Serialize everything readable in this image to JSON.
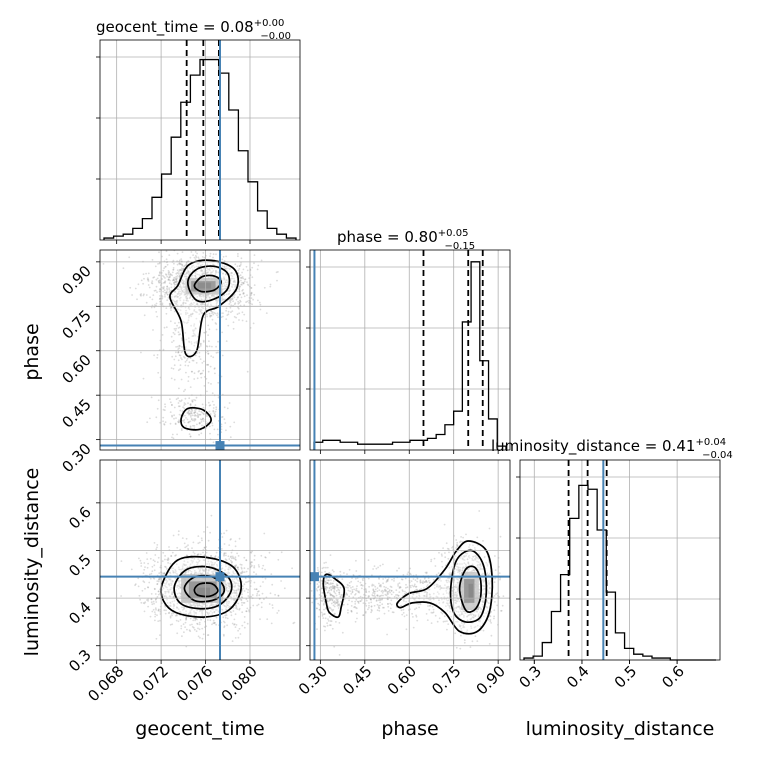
{
  "chart_data": {
    "type": "corner",
    "colors": {
      "truth": "#4682b4",
      "hist": "#000000",
      "samples": "#9a9a9a",
      "grid": "#b0b0b0"
    },
    "grid": true,
    "parameters": [
      {
        "name": "geocent_time",
        "label": "geocent_time",
        "title": "geocent_time = 0.08",
        "title_sup": "+0.00",
        "title_sub": "−0.00",
        "range": [
          0.0665,
          0.0845
        ],
        "ticks": [
          0.068,
          0.072,
          0.076,
          0.08
        ],
        "tick_labels": [
          "0.068",
          "0.072",
          "0.076",
          "0.080"
        ],
        "truth": 0.0773,
        "quantiles": [
          0.0743,
          0.0758,
          0.0772
        ],
        "hist_values": [
          0.01,
          0.02,
          0.03,
          0.06,
          0.11,
          0.22,
          0.34,
          0.53,
          0.71,
          0.85,
          0.93,
          0.93,
          0.86,
          0.67,
          0.46,
          0.3,
          0.15,
          0.06,
          0.03,
          0.01
        ]
      },
      {
        "name": "phase",
        "label": "phase",
        "title": "phase = 0.80",
        "title_sup": "+0.05",
        "title_sub": "−0.15",
        "range": [
          0.265,
          0.94
        ],
        "ticks": [
          0.3,
          0.45,
          0.6,
          0.75,
          0.9
        ],
        "tick_labels": [
          "0.30",
          "0.45",
          "0.60",
          "0.75",
          "0.90"
        ],
        "truth": 0.28,
        "quantiles": [
          0.648,
          0.799,
          0.848
        ],
        "hist_values": [
          0.04,
          0.05,
          0.05,
          0.04,
          0.04,
          0.03,
          0.03,
          0.03,
          0.03,
          0.04,
          0.04,
          0.05,
          0.05,
          0.06,
          0.08,
          0.13,
          0.2,
          0.66,
          0.97,
          0.46,
          0.16,
          0.02
        ]
      },
      {
        "name": "luminosity_distance",
        "label": "luminosity_distance",
        "title": "luminosity_distance = 0.41",
        "title_sup": "+0.04",
        "title_sub": "−0.04",
        "range": [
          0.27,
          0.69
        ],
        "ticks": [
          0.3,
          0.4,
          0.5,
          0.6
        ],
        "tick_labels": [
          "0.3",
          "0.4",
          "0.5",
          "0.6"
        ],
        "truth": 0.445,
        "quantiles": [
          0.372,
          0.412,
          0.452
        ],
        "hist_values": [
          0.01,
          0.02,
          0.09,
          0.25,
          0.44,
          0.73,
          0.9,
          0.88,
          0.67,
          0.35,
          0.14,
          0.06,
          0.03,
          0.02,
          0.01,
          0.01,
          0.0,
          0.0,
          0.0,
          0.0,
          0.0
        ]
      }
    ]
  }
}
